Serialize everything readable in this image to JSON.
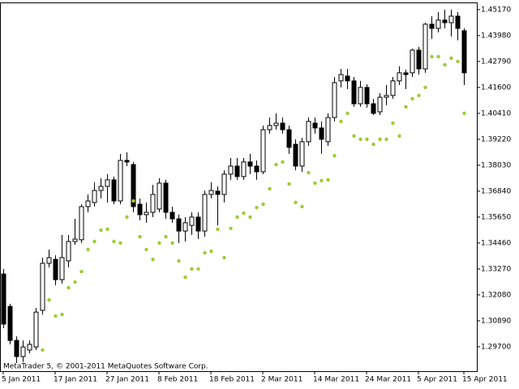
{
  "chart_data": {
    "type": "candlestick",
    "footer": "MetaTrader 5, © 2001-2011 MetaQuotes Software Corp.",
    "categories": [
      "5 Jan 2011",
      null,
      null,
      null,
      null,
      null,
      null,
      null,
      "17 Jan 2011",
      null,
      null,
      null,
      null,
      null,
      null,
      null,
      "27 Jan 2011",
      null,
      null,
      null,
      null,
      null,
      null,
      null,
      "8 Feb 2011",
      null,
      null,
      null,
      null,
      null,
      null,
      null,
      "18 Feb 2011",
      null,
      null,
      null,
      null,
      null,
      null,
      null,
      "2 Mar 2011",
      null,
      null,
      null,
      null,
      null,
      null,
      null,
      "14 Mar 2011",
      null,
      null,
      null,
      null,
      null,
      null,
      null,
      "24 Mar 2011",
      null,
      null,
      null,
      null,
      null,
      null,
      null,
      "5 Apr 2011",
      null,
      null,
      null,
      null,
      null,
      null,
      "15 Apr 2011"
    ],
    "ohlc": {
      "open": [
        1.3304,
        1.3155,
        1.2999,
        1.2925,
        1.2955,
        1.2969,
        1.3137,
        1.3353,
        1.3371,
        1.3278,
        1.3364,
        1.3453,
        1.3461,
        1.3613,
        1.3632,
        1.3687,
        1.3706,
        1.3736,
        1.3639,
        1.3825,
        1.3806,
        1.3624,
        1.3576,
        1.3587,
        1.3602,
        1.3721,
        1.3587,
        1.3557,
        1.3501,
        1.3527,
        1.3565,
        1.3501,
        1.3669,
        1.3684,
        1.3669,
        1.3762,
        1.3799,
        1.3751,
        1.3818,
        1.3799,
        1.3773,
        1.3966,
        1.3985,
        1.3996,
        1.3966,
        1.3899,
        1.3799,
        1.3911,
        1.3996,
        1.3974,
        1.3911,
        1.4022,
        1.419,
        1.4212,
        1.419,
        1.4085,
        1.416,
        1.4085,
        1.4048,
        1.4115,
        1.4123,
        1.419,
        1.4227,
        1.4227,
        1.4331,
        1.4245,
        1.445,
        1.4431,
        1.4469,
        1.4457,
        1.4487,
        1.442
      ],
      "high": [
        1.3327,
        1.3167,
        1.3018,
        1.2999,
        1.2999,
        1.3148,
        1.3379,
        1.3416,
        1.339,
        1.3483,
        1.3483,
        1.3557,
        1.3624,
        1.3669,
        1.3725,
        1.3743,
        1.3762,
        1.3751,
        1.3855,
        1.3862,
        1.3818,
        1.365,
        1.3632,
        1.3713,
        1.3743,
        1.3736,
        1.3613,
        1.3576,
        1.3565,
        1.3587,
        1.3587,
        1.3687,
        1.3725,
        1.3706,
        1.378,
        1.3836,
        1.3836,
        1.3836,
        1.3855,
        1.3825,
        1.3985,
        1.4022,
        1.4041,
        1.4022,
        1.3985,
        1.3922,
        1.3929,
        1.4022,
        1.4022,
        1.4004,
        1.4041,
        1.4208,
        1.4245,
        1.4245,
        1.4208,
        1.419,
        1.4175,
        1.4108,
        1.4134,
        1.4171,
        1.4208,
        1.4257,
        1.4242,
        1.4338,
        1.4346,
        1.4457,
        1.4487,
        1.4506,
        1.4517,
        1.4517,
        1.4506,
        1.4431
      ],
      "low": [
        1.3055,
        1.2981,
        1.2895,
        1.2899,
        1.294,
        1.2955,
        1.3118,
        1.3334,
        1.3252,
        1.326,
        1.3334,
        1.3438,
        1.3446,
        1.3587,
        1.3613,
        1.365,
        1.3632,
        1.3624,
        1.3624,
        1.3799,
        1.3587,
        1.355,
        1.3539,
        1.3565,
        1.3587,
        1.3557,
        1.3539,
        1.3446,
        1.3453,
        1.3483,
        1.3464,
        1.3475,
        1.365,
        1.3527,
        1.3632,
        1.3736,
        1.3736,
        1.3736,
        1.3762,
        1.3736,
        1.3762,
        1.3948,
        1.3966,
        1.3948,
        1.3855,
        1.378,
        1.3773,
        1.3892,
        1.3948,
        1.3855,
        1.3892,
        1.4004,
        1.416,
        1.4152,
        1.4071,
        1.4071,
        1.4067,
        1.4033,
        1.4033,
        1.4078,
        1.4108,
        1.4171,
        1.4152,
        1.4208,
        1.4219,
        1.4227,
        1.4383,
        1.4413,
        1.4431,
        1.4394,
        1.4376,
        1.4171
      ],
      "close": [
        1.3074,
        1.2999,
        1.2925,
        1.2969,
        1.2981,
        1.3129,
        1.3353,
        1.3379,
        1.3278,
        1.3379,
        1.3453,
        1.3464,
        1.3613,
        1.3639,
        1.3687,
        1.3706,
        1.3736,
        1.3639,
        1.3825,
        1.3818,
        1.3613,
        1.3576,
        1.3587,
        1.3669,
        1.3721,
        1.3587,
        1.3557,
        1.3501,
        1.3539,
        1.3565,
        1.3501,
        1.3669,
        1.3687,
        1.3669,
        1.3762,
        1.3799,
        1.3751,
        1.3818,
        1.3799,
        1.3773,
        1.3966,
        1.3985,
        1.3996,
        1.3966,
        1.3885,
        1.3799,
        1.3911,
        1.4004,
        1.3974,
        1.3922,
        1.4022,
        1.4182,
        1.4219,
        1.419,
        1.4085,
        1.416,
        1.4085,
        1.4041,
        1.4115,
        1.4123,
        1.419,
        1.4227,
        1.4219,
        1.4331,
        1.4245,
        1.445,
        1.4431,
        1.4469,
        1.4457,
        1.4487,
        1.4431,
        1.4227
      ],
      "up_color": "#ffffff",
      "down_color": "#000000",
      "outline": "#000000"
    },
    "sar": {
      "color": "#9acd32",
      "values": [
        null,
        null,
        null,
        null,
        null,
        null,
        1.2955,
        1.3185,
        1.3111,
        1.3118,
        1.3241,
        1.3267,
        1.3315,
        1.3416,
        1.3453,
        1.3505,
        1.3509,
        1.3453,
        1.3446,
        1.3565,
        1.3639,
        1.3475,
        1.3416,
        1.3371,
        1.3446,
        1.3475,
        1.3446,
        1.3364,
        1.3289,
        1.3327,
        1.3327,
        1.3401,
        1.3408,
        1.3509,
        1.3379,
        1.3513,
        1.3565,
        1.3583,
        1.3565,
        1.3609,
        1.3624,
        1.3695,
        1.3806,
        1.3818,
        1.3717,
        1.3632,
        1.3613,
        1.3769,
        1.3721,
        1.3732,
        1.3736,
        1.3847,
        1.4004,
        1.4041,
        1.3937,
        1.3922,
        1.3922,
        1.3899,
        1.3922,
        1.3922,
        1.3996,
        1.3937,
        1.4071,
        1.4108,
        1.4123,
        1.416,
        1.4301,
        1.4301,
        1.4264,
        1.4294,
        1.4279,
        1.4041
      ]
    },
    "ylim": [
      1.2858,
      1.455
    ],
    "yticks": [
      {
        "value": 1.297,
        "label": "1.29700"
      },
      {
        "value": 1.3089,
        "label": "1.30890"
      },
      {
        "value": 1.3208,
        "label": "1.32080"
      },
      {
        "value": 1.3327,
        "label": "1.33270"
      },
      {
        "value": 1.3446,
        "label": "1.34460"
      },
      {
        "value": 1.3565,
        "label": "1.35650"
      },
      {
        "value": 1.3684,
        "label": "1.36840"
      },
      {
        "value": 1.3803,
        "label": "1.38030"
      },
      {
        "value": 1.3922,
        "label": "1.39220"
      },
      {
        "value": 1.4041,
        "label": "1.40410"
      },
      {
        "value": 1.416,
        "label": "1.41600"
      },
      {
        "value": 1.4279,
        "label": "1.42790"
      },
      {
        "value": 1.4398,
        "label": "1.43980"
      },
      {
        "value": 1.4517,
        "label": "1.45170"
      }
    ],
    "grid": false
  }
}
